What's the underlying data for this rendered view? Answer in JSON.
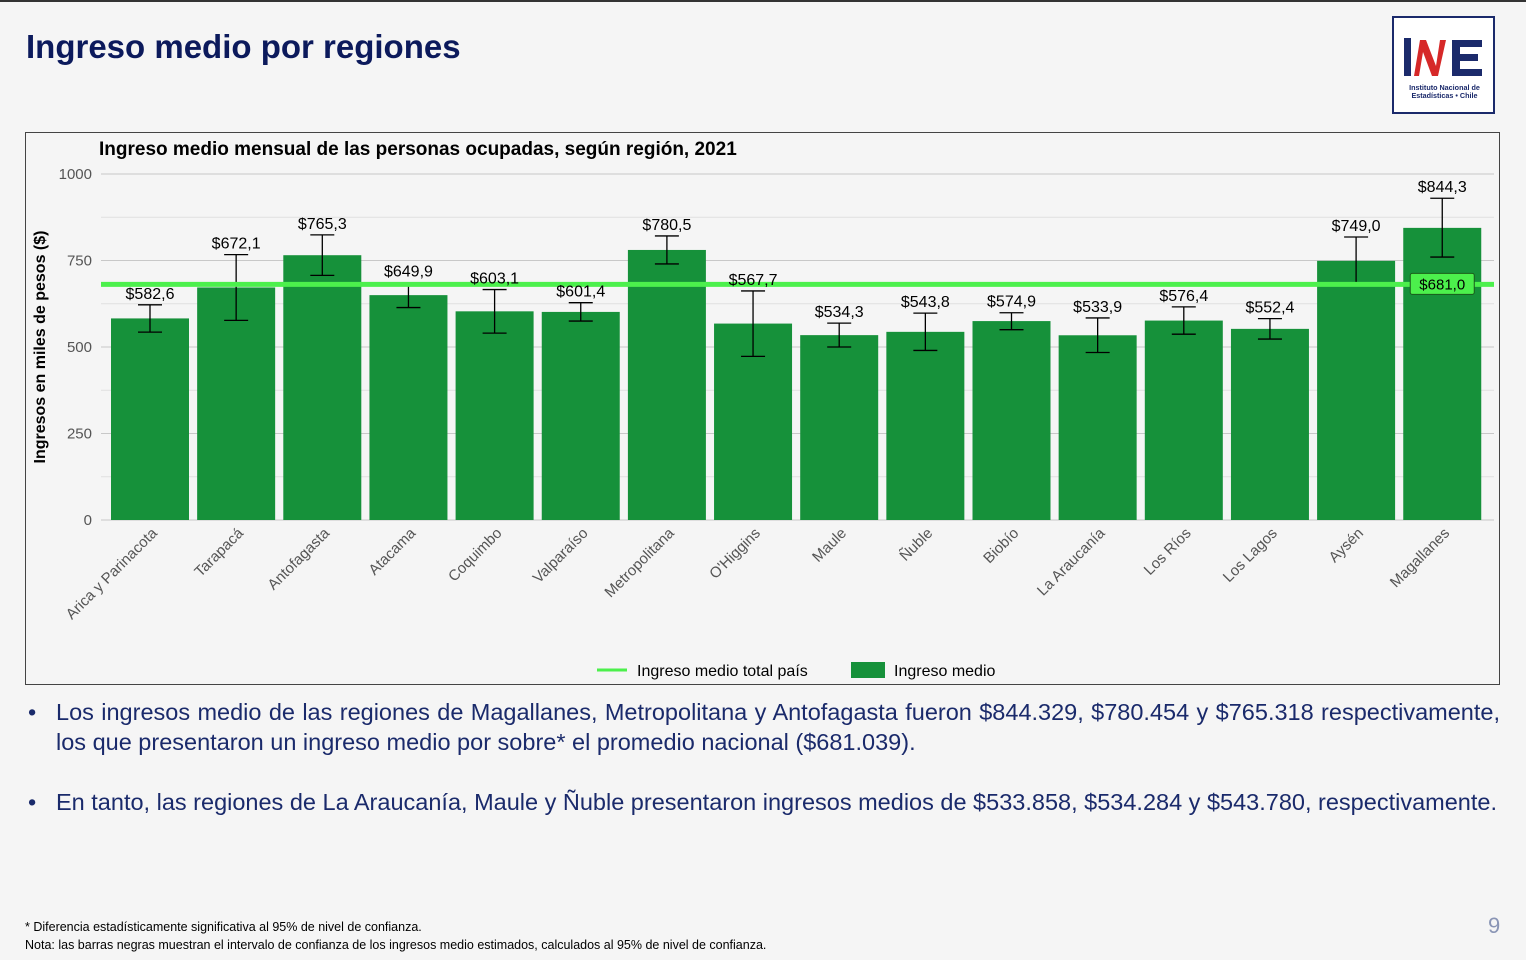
{
  "slide": {
    "title": "Ingreso medio por regiones",
    "page_number": "9",
    "logo": {
      "mark": "INE",
      "line1": "Instituto Nacional de",
      "line2": "Estadísticas • Chile"
    }
  },
  "chart_data": {
    "type": "bar",
    "title": "Ingreso medio mensual de las personas ocupadas, según región, 2021",
    "ylabel": "Ingresos en miles de pesos ($)",
    "xlabel": "",
    "ylim": [
      0,
      1000
    ],
    "yticks": [
      0,
      250,
      500,
      750,
      1000
    ],
    "grid": true,
    "categories": [
      "Arica y Parinacota",
      "Tarapacá",
      "Antofagasta",
      "Atacama",
      "Coquimbo",
      "Valparaíso",
      "Metropolitana",
      "O'Higgins",
      "Maule",
      "Ñuble",
      "Biobío",
      "La Araucanía",
      "Los Ríos",
      "Los Lagos",
      "Aysén",
      "Magallanes"
    ],
    "series": [
      {
        "name": "Ingreso medio",
        "color": "#16913a",
        "values": [
          582.6,
          672.1,
          765.3,
          649.9,
          603.1,
          601.4,
          780.5,
          567.7,
          534.3,
          543.8,
          574.9,
          533.9,
          576.4,
          552.4,
          749.0,
          844.3
        ],
        "labels": [
          "$582,6",
          "$672,1",
          "$765,3",
          "$649,9",
          "$603,1",
          "$601,4",
          "$780,5",
          "$567,7",
          "$534,3",
          "$543,8",
          "$574,9",
          "$533,9",
          "$576,4",
          "$552,4",
          "$749,0",
          "$844,3"
        ],
        "ci_low": [
          543,
          577,
          707,
          614,
          540,
          575,
          740,
          473,
          500,
          490,
          550,
          484,
          537,
          523,
          680,
          760
        ],
        "ci_high": [
          622,
          767,
          824,
          686,
          666,
          628,
          821,
          662,
          569,
          598,
          599,
          584,
          616,
          582,
          818,
          930
        ]
      }
    ],
    "reference_line": {
      "name": "Ingreso medio total país",
      "value": 681.0,
      "label": "$681,0",
      "color": "#4cf04c"
    },
    "legend": {
      "position": "bottom",
      "items": [
        "Ingreso medio total país",
        "Ingreso medio"
      ]
    }
  },
  "bullets": [
    "Los ingresos medio de las regiones de Magallanes, Metropolitana y Antofagasta fueron $844.329, $780.454 y $765.318 respectivamente, los que presentaron un ingreso medio por sobre* el promedio nacional ($681.039).",
    "En tanto, las regiones de La Araucanía, Maule y Ñuble presentaron ingresos medios de $533.858, $534.284 y $543.780, respectivamente."
  ],
  "footnotes": {
    "asterisk": "* Diferencia estadísticamente significativa al 95% de nivel de confianza.",
    "note": "Nota: las barras negras muestran el intervalo de confianza de los ingresos medio estimados, calculados al 95% de nivel de confianza."
  }
}
